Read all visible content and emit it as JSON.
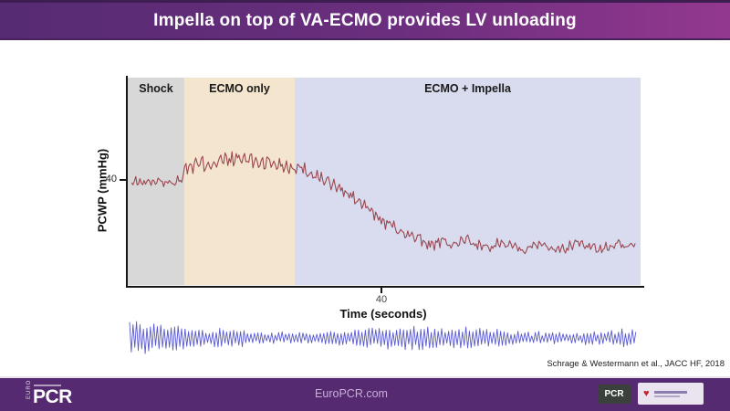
{
  "slide": {
    "title": "Impella on top of VA-ECMO provides LV unloading",
    "citation": "Schrage & Westermann et al., JACC HF, 2018"
  },
  "footer": {
    "url": "EuroPCR.com",
    "logo_main": "PCR",
    "logo_main_vertical": "EURO",
    "logo_pcr_box": "PCR"
  },
  "colors": {
    "header_gradient_left": "#562b73",
    "header_gradient_right": "#93388f",
    "footer_bg": "#552a70",
    "region_shock": "#d8d8d8",
    "region_ecmo_only": "#f4e6ce",
    "region_ecmo_impella": "#d9dcee",
    "pcwp_trace": "#9a4750",
    "strip_trace": "#5a5ad0",
    "axis": "#151515"
  },
  "chart_data": [
    {
      "type": "line",
      "title": "",
      "ylabel": "PCWP (mmHg)",
      "xlabel": "Time (seconds)",
      "x_ticks": [
        "40"
      ],
      "y_ticks": [
        "40"
      ],
      "xlim": [
        0,
        81
      ],
      "ylim_approx": [
        10,
        68
      ],
      "grid": false,
      "legend": "none",
      "regions": [
        {
          "label": "Shock",
          "t_start": 0,
          "t_end": 8.9
        },
        {
          "label": "ECMO only",
          "t_start": 8.9,
          "t_end": 26.3
        },
        {
          "label": "ECMO + Impella",
          "t_start": 26.3,
          "t_end": 81
        }
      ],
      "series": [
        {
          "name": "PCWP",
          "units": "mmHg",
          "trend_points": [
            [
              0,
              39.2
            ],
            [
              2,
              39.4
            ],
            [
              4,
              39.6
            ],
            [
              6,
              39.3
            ],
            [
              8,
              39.8
            ],
            [
              8.6,
              40.2
            ],
            [
              8.9,
              43.5
            ],
            [
              11,
              44.2
            ],
            [
              13,
              44.8
            ],
            [
              15,
              45.3
            ],
            [
              17,
              45.8
            ],
            [
              18.5,
              45.9
            ],
            [
              20,
              45.3
            ],
            [
              22,
              44.9
            ],
            [
              24,
              44.4
            ],
            [
              26.3,
              43.8
            ],
            [
              28,
              42.8
            ],
            [
              30,
              41.0
            ],
            [
              32,
              39.0
            ],
            [
              34,
              36.8
            ],
            [
              36,
              34.5
            ],
            [
              38,
              31.8
            ],
            [
              40,
              28.8
            ],
            [
              42,
              26.6
            ],
            [
              44,
              24.8
            ],
            [
              46,
              23.2
            ],
            [
              48,
              21.8
            ],
            [
              50,
              22.8
            ],
            [
              51.5,
              21.2
            ],
            [
              53,
              23.6
            ],
            [
              55,
              22.0
            ],
            [
              57,
              20.6
            ],
            [
              59,
              23.0
            ],
            [
              61,
              21.4
            ],
            [
              63,
              20.6
            ],
            [
              65,
              22.6
            ],
            [
              67,
              21.0
            ],
            [
              69,
              20.6
            ],
            [
              71,
              22.8
            ],
            [
              73,
              21.2
            ],
            [
              75,
              20.4
            ],
            [
              77,
              22.2
            ],
            [
              79,
              20.8
            ],
            [
              80.5,
              21.8
            ],
            [
              81,
              21.4
            ]
          ],
          "noise_amplitude_mmhg": {
            "shock": 1.1,
            "ecmo_only": 1.9,
            "decline": 1.5,
            "plateau": 1.2
          }
        }
      ]
    },
    {
      "type": "line",
      "title": "pulsatile-waveform-strip",
      "description": "Unlabeled high-frequency pulsatile trace rendered below the time axis",
      "amplitude_varies": true,
      "approx_cycles": 140
    }
  ]
}
